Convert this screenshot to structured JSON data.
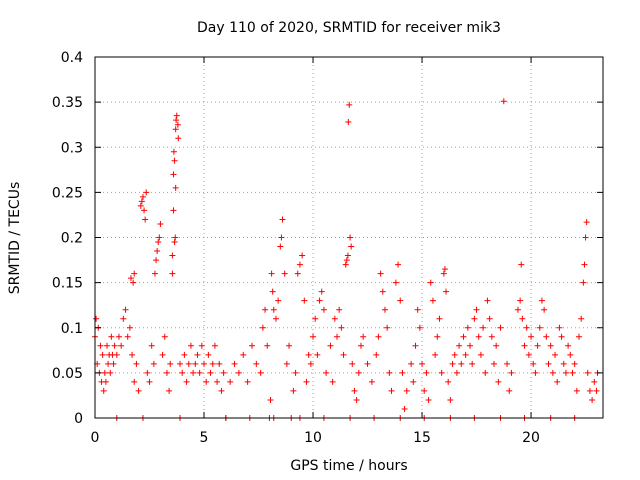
{
  "chart_data": {
    "type": "scatter",
    "title": "Day 110 of 2020, SRMTID for receiver mik3",
    "xlabel": "GPS time / hours",
    "ylabel": "SRMTID / TECUs",
    "xlim": [
      0,
      23.3
    ],
    "ylim": [
      0,
      0.4
    ],
    "x_ticks": [
      0,
      5,
      10,
      15,
      20
    ],
    "x_tick_labels": [
      "0",
      "5",
      "10",
      "15",
      "20"
    ],
    "y_ticks": [
      0,
      0.05,
      0.1,
      0.15,
      0.2,
      0.25,
      0.3,
      0.35,
      0.4
    ],
    "y_tick_labels": [
      "0",
      "0.05",
      "0.1",
      "0.15",
      "0.2",
      "0.25",
      "0.3",
      "0.35",
      "0.4"
    ],
    "grid": true,
    "marker": "+",
    "color": "#ff0000",
    "series": [
      {
        "name": "SRMTID",
        "points": [
          [
            0.0,
            0.09
          ],
          [
            0.05,
            0.11
          ],
          [
            0.1,
            0.06
          ],
          [
            0.15,
            0.1
          ],
          [
            0.2,
            0.05
          ],
          [
            0.25,
            0.08
          ],
          [
            0.3,
            0.04
          ],
          [
            0.35,
            0.07
          ],
          [
            0.4,
            0.03
          ],
          [
            0.45,
            0.05
          ],
          [
            0.5,
            0.04
          ],
          [
            0.55,
            0.08
          ],
          [
            0.6,
            0.06
          ],
          [
            0.65,
            0.07
          ],
          [
            0.7,
            0.05
          ],
          [
            0.75,
            0.09
          ],
          [
            0.8,
            0.07
          ],
          [
            0.85,
            0.06
          ],
          [
            0.9,
            0.08
          ],
          [
            1.0,
            0.07
          ],
          [
            1.1,
            0.09
          ],
          [
            1.2,
            0.08
          ],
          [
            1.3,
            0.11
          ],
          [
            1.4,
            0.12
          ],
          [
            1.5,
            0.09
          ],
          [
            1.6,
            0.1
          ],
          [
            1.7,
            0.07
          ],
          [
            1.8,
            0.04
          ],
          [
            1.9,
            0.06
          ],
          [
            2.0,
            0.03
          ],
          [
            1.65,
            0.155
          ],
          [
            1.75,
            0.15
          ],
          [
            1.8,
            0.16
          ],
          [
            2.1,
            0.235
          ],
          [
            2.15,
            0.24
          ],
          [
            2.2,
            0.245
          ],
          [
            2.25,
            0.23
          ],
          [
            2.3,
            0.22
          ],
          [
            2.35,
            0.25
          ],
          [
            2.4,
            0.05
          ],
          [
            2.5,
            0.04
          ],
          [
            2.6,
            0.08
          ],
          [
            2.7,
            0.06
          ],
          [
            2.75,
            0.16
          ],
          [
            2.8,
            0.175
          ],
          [
            2.85,
            0.185
          ],
          [
            2.9,
            0.195
          ],
          [
            2.95,
            0.2
          ],
          [
            3.0,
            0.215
          ],
          [
            3.1,
            0.07
          ],
          [
            3.2,
            0.09
          ],
          [
            3.3,
            0.05
          ],
          [
            3.4,
            0.03
          ],
          [
            3.45,
            0.06
          ],
          [
            3.55,
            0.16
          ],
          [
            3.55,
            0.18
          ],
          [
            3.6,
            0.23
          ],
          [
            3.6,
            0.27
          ],
          [
            3.62,
            0.295
          ],
          [
            3.65,
            0.285
          ],
          [
            3.7,
            0.32
          ],
          [
            3.72,
            0.33
          ],
          [
            3.75,
            0.335
          ],
          [
            3.8,
            0.325
          ],
          [
            3.82,
            0.31
          ],
          [
            3.7,
            0.255
          ],
          [
            3.68,
            0.2
          ],
          [
            3.65,
            0.195
          ],
          [
            3.9,
            0.06
          ],
          [
            4.0,
            0.05
          ],
          [
            4.1,
            0.07
          ],
          [
            4.2,
            0.04
          ],
          [
            4.3,
            0.06
          ],
          [
            4.4,
            0.08
          ],
          [
            4.5,
            0.05
          ],
          [
            4.6,
            0.06
          ],
          [
            4.7,
            0.07
          ],
          [
            4.8,
            0.05
          ],
          [
            4.9,
            0.08
          ],
          [
            5.0,
            0.06
          ],
          [
            5.1,
            0.04
          ],
          [
            5.2,
            0.07
          ],
          [
            5.3,
            0.05
          ],
          [
            5.4,
            0.06
          ],
          [
            5.5,
            0.08
          ],
          [
            5.6,
            0.04
          ],
          [
            5.7,
            0.06
          ],
          [
            5.8,
            0.03
          ],
          [
            5.9,
            0.05
          ],
          [
            6.0,
            0.0
          ],
          [
            6.2,
            0.04
          ],
          [
            6.4,
            0.06
          ],
          [
            6.6,
            0.05
          ],
          [
            6.8,
            0.07
          ],
          [
            7.0,
            0.04
          ],
          [
            7.2,
            0.08
          ],
          [
            7.4,
            0.06
          ],
          [
            7.6,
            0.05
          ],
          [
            7.7,
            0.1
          ],
          [
            7.8,
            0.12
          ],
          [
            7.9,
            0.08
          ],
          [
            8.0,
            0.0
          ],
          [
            8.05,
            0.02
          ],
          [
            8.1,
            0.16
          ],
          [
            8.15,
            0.14
          ],
          [
            8.2,
            0.12
          ],
          [
            8.3,
            0.11
          ],
          [
            8.4,
            0.13
          ],
          [
            8.5,
            0.19
          ],
          [
            8.55,
            0.2
          ],
          [
            8.6,
            0.22
          ],
          [
            8.7,
            0.16
          ],
          [
            8.8,
            0.06
          ],
          [
            8.9,
            0.08
          ],
          [
            9.0,
            0.0
          ],
          [
            9.1,
            0.03
          ],
          [
            9.2,
            0.05
          ],
          [
            9.3,
            0.16
          ],
          [
            9.4,
            0.17
          ],
          [
            9.5,
            0.18
          ],
          [
            9.6,
            0.13
          ],
          [
            9.7,
            0.04
          ],
          [
            9.8,
            0.07
          ],
          [
            9.9,
            0.06
          ],
          [
            10.0,
            0.09
          ],
          [
            10.1,
            0.11
          ],
          [
            10.2,
            0.07
          ],
          [
            10.3,
            0.13
          ],
          [
            10.4,
            0.14
          ],
          [
            10.5,
            0.12
          ],
          [
            10.6,
            0.05
          ],
          [
            10.8,
            0.08
          ],
          [
            10.9,
            0.04
          ],
          [
            11.0,
            0.11
          ],
          [
            11.1,
            0.09
          ],
          [
            11.2,
            0.12
          ],
          [
            11.3,
            0.1
          ],
          [
            11.4,
            0.07
          ],
          [
            11.5,
            0.17
          ],
          [
            11.55,
            0.175
          ],
          [
            11.6,
            0.18
          ],
          [
            11.62,
            0.328
          ],
          [
            11.66,
            0.347
          ],
          [
            11.7,
            0.2
          ],
          [
            11.75,
            0.19
          ],
          [
            11.8,
            0.06
          ],
          [
            11.9,
            0.03
          ],
          [
            12.0,
            0.02
          ],
          [
            12.1,
            0.05
          ],
          [
            12.2,
            0.08
          ],
          [
            12.3,
            0.09
          ],
          [
            12.5,
            0.06
          ],
          [
            12.7,
            0.04
          ],
          [
            12.9,
            0.07
          ],
          [
            13.0,
            0.09
          ],
          [
            13.1,
            0.16
          ],
          [
            13.2,
            0.14
          ],
          [
            13.3,
            0.12
          ],
          [
            13.4,
            0.1
          ],
          [
            13.5,
            0.05
          ],
          [
            13.6,
            0.03
          ],
          [
            13.8,
            0.15
          ],
          [
            13.9,
            0.17
          ],
          [
            14.0,
            0.13
          ],
          [
            14.1,
            0.05
          ],
          [
            14.2,
            0.01
          ],
          [
            14.3,
            0.03
          ],
          [
            14.5,
            0.06
          ],
          [
            14.6,
            0.04
          ],
          [
            14.7,
            0.08
          ],
          [
            14.8,
            0.12
          ],
          [
            14.9,
            0.1
          ],
          [
            15.0,
            0.06
          ],
          [
            15.1,
            0.03
          ],
          [
            15.2,
            0.05
          ],
          [
            15.3,
            0.02
          ],
          [
            15.4,
            0.15
          ],
          [
            15.5,
            0.13
          ],
          [
            15.6,
            0.07
          ],
          [
            15.7,
            0.09
          ],
          [
            15.8,
            0.11
          ],
          [
            15.9,
            0.05
          ],
          [
            16.0,
            0.16
          ],
          [
            16.05,
            0.165
          ],
          [
            16.1,
            0.14
          ],
          [
            16.2,
            0.04
          ],
          [
            16.3,
            0.02
          ],
          [
            16.4,
            0.06
          ],
          [
            16.5,
            0.07
          ],
          [
            16.6,
            0.05
          ],
          [
            16.7,
            0.08
          ],
          [
            16.8,
            0.06
          ],
          [
            16.9,
            0.09
          ],
          [
            17.0,
            0.07
          ],
          [
            17.1,
            0.1
          ],
          [
            17.2,
            0.08
          ],
          [
            17.3,
            0.06
          ],
          [
            17.4,
            0.11
          ],
          [
            17.5,
            0.12
          ],
          [
            17.6,
            0.09
          ],
          [
            17.7,
            0.07
          ],
          [
            17.8,
            0.1
          ],
          [
            17.9,
            0.05
          ],
          [
            18.0,
            0.13
          ],
          [
            18.1,
            0.11
          ],
          [
            18.2,
            0.09
          ],
          [
            18.3,
            0.06
          ],
          [
            18.4,
            0.08
          ],
          [
            18.5,
            0.04
          ],
          [
            18.6,
            0.1
          ],
          [
            18.75,
            0.351
          ],
          [
            18.9,
            0.06
          ],
          [
            19.0,
            0.03
          ],
          [
            19.1,
            0.05
          ],
          [
            19.4,
            0.12
          ],
          [
            19.5,
            0.13
          ],
          [
            19.55,
            0.17
          ],
          [
            19.6,
            0.11
          ],
          [
            19.7,
            0.08
          ],
          [
            19.8,
            0.1
          ],
          [
            19.9,
            0.07
          ],
          [
            20.0,
            0.09
          ],
          [
            20.1,
            0.06
          ],
          [
            20.2,
            0.05
          ],
          [
            20.3,
            0.08
          ],
          [
            20.4,
            0.1
          ],
          [
            20.5,
            0.13
          ],
          [
            20.6,
            0.12
          ],
          [
            20.7,
            0.09
          ],
          [
            20.8,
            0.06
          ],
          [
            20.9,
            0.08
          ],
          [
            21.0,
            0.05
          ],
          [
            21.1,
            0.07
          ],
          [
            21.2,
            0.04
          ],
          [
            21.3,
            0.1
          ],
          [
            21.4,
            0.09
          ],
          [
            21.5,
            0.06
          ],
          [
            21.6,
            0.05
          ],
          [
            21.7,
            0.08
          ],
          [
            21.8,
            0.07
          ],
          [
            21.9,
            0.05
          ],
          [
            22.0,
            0.06
          ],
          [
            22.1,
            0.03
          ],
          [
            22.2,
            0.09
          ],
          [
            22.3,
            0.11
          ],
          [
            22.4,
            0.15
          ],
          [
            22.45,
            0.17
          ],
          [
            22.5,
            0.2
          ],
          [
            22.55,
            0.217
          ],
          [
            22.6,
            0.05
          ],
          [
            22.7,
            0.03
          ],
          [
            22.8,
            0.02
          ],
          [
            22.9,
            0.04
          ],
          [
            23.0,
            0.03
          ],
          [
            23.05,
            0.05
          ],
          [
            1.0,
            0.0
          ],
          [
            2.2,
            0.0
          ],
          [
            3.9,
            0.0
          ],
          [
            6.0,
            0.0
          ],
          [
            7.1,
            0.0
          ],
          [
            8.2,
            0.0
          ],
          [
            9.4,
            0.0
          ],
          [
            10.5,
            0.0
          ],
          [
            11.7,
            0.0
          ],
          [
            12.8,
            0.0
          ],
          [
            14.0,
            0.0
          ],
          [
            15.1,
            0.0
          ],
          [
            16.3,
            0.0
          ],
          [
            17.4,
            0.0
          ],
          [
            18.6,
            0.0
          ],
          [
            19.7,
            0.0
          ],
          [
            20.9,
            0.0
          ],
          [
            22.0,
            0.0
          ]
        ]
      }
    ]
  }
}
